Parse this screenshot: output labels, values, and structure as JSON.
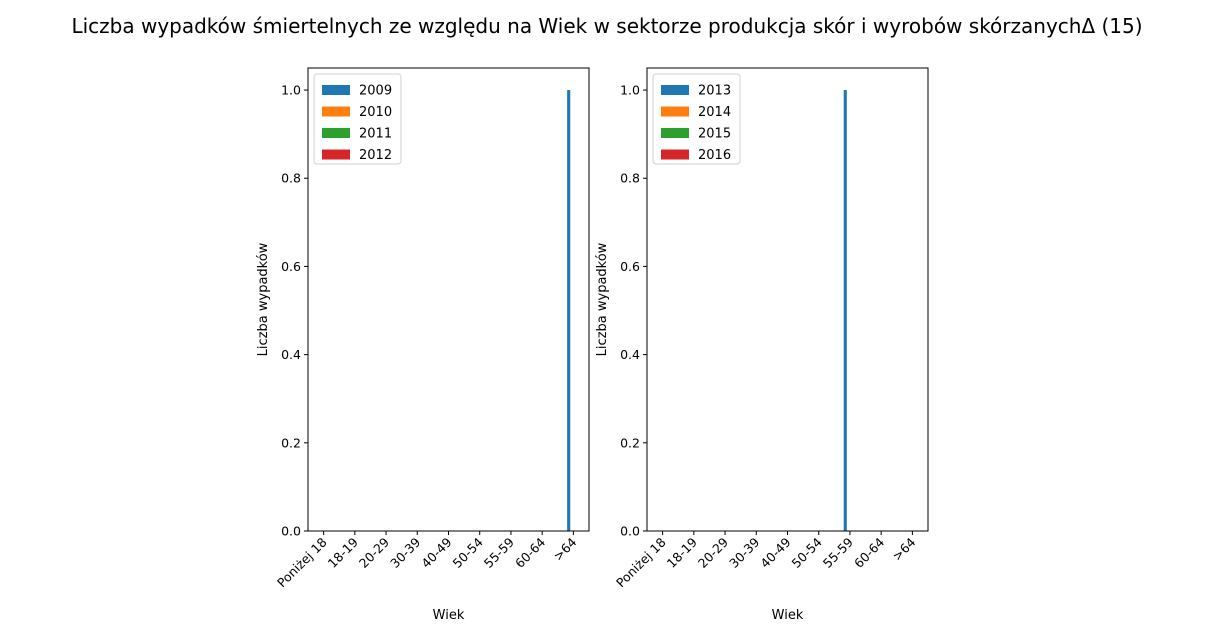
{
  "title": "Liczba wypadków śmiertelnych ze względu na Wiek w sektorze produkcja skór i wyrobów skórzanychΔ (15)",
  "chart_data": [
    {
      "type": "bar",
      "xlabel": "Wiek",
      "ylabel": "Liczba wypadków",
      "categories": [
        "Poniżej 18",
        "18-19",
        "20-29",
        "30-39",
        "40-49",
        "50-54",
        "55-59",
        "60-64",
        ">64"
      ],
      "ylim": [
        0,
        1.05
      ],
      "yticks": [
        "0.0",
        "0.2",
        "0.4",
        "0.6",
        "0.8",
        "1.0"
      ],
      "legend_position": "upper-left",
      "series": [
        {
          "name": "2009",
          "color": "#1f77b4",
          "values": [
            0,
            0,
            0,
            0,
            0,
            0,
            0,
            0,
            1
          ]
        },
        {
          "name": "2010",
          "color": "#ff7f0e",
          "values": [
            0,
            0,
            0,
            0,
            0,
            0,
            0,
            0,
            0
          ]
        },
        {
          "name": "2011",
          "color": "#2ca02c",
          "values": [
            0,
            0,
            0,
            0,
            0,
            0,
            0,
            0,
            0
          ]
        },
        {
          "name": "2012",
          "color": "#d62728",
          "values": [
            0,
            0,
            0,
            0,
            0,
            0,
            0,
            0,
            0
          ]
        }
      ]
    },
    {
      "type": "bar",
      "xlabel": "Wiek",
      "ylabel": "Liczba wypadków",
      "categories": [
        "Poniżej 18",
        "18-19",
        "20-29",
        "30-39",
        "40-49",
        "50-54",
        "55-59",
        "60-64",
        ">64"
      ],
      "ylim": [
        0,
        1.05
      ],
      "yticks": [
        "0.0",
        "0.2",
        "0.4",
        "0.6",
        "0.8",
        "1.0"
      ],
      "legend_position": "upper-left",
      "series": [
        {
          "name": "2013",
          "color": "#1f77b4",
          "values": [
            0,
            0,
            0,
            0,
            0,
            0,
            1,
            0,
            0
          ]
        },
        {
          "name": "2014",
          "color": "#ff7f0e",
          "values": [
            0,
            0,
            0,
            0,
            0,
            0,
            0,
            0,
            0
          ]
        },
        {
          "name": "2015",
          "color": "#2ca02c",
          "values": [
            0,
            0,
            0,
            0,
            0,
            0,
            0,
            0,
            0
          ]
        },
        {
          "name": "2016",
          "color": "#d62728",
          "values": [
            0,
            0,
            0,
            0,
            0,
            0,
            0,
            0,
            0
          ]
        }
      ]
    }
  ]
}
